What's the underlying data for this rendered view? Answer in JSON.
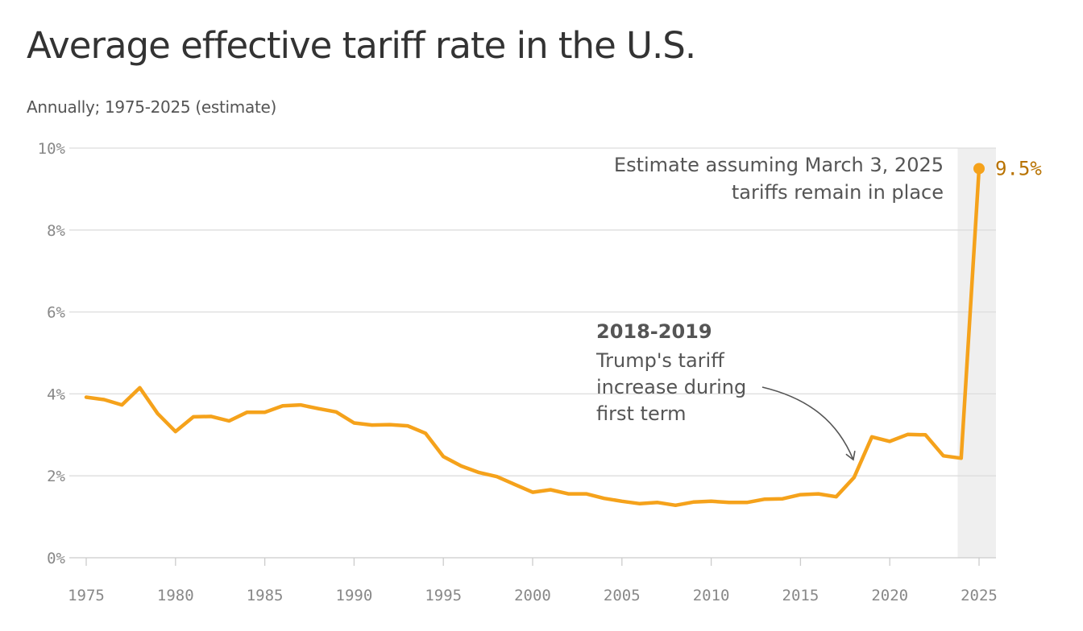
{
  "header": {
    "title": "Average effective tariff rate in the U.S.",
    "subtitle": "Annually; 1975-2025 (estimate)"
  },
  "colors": {
    "line": "#f5a21b",
    "end_label": "#b87200",
    "grid": "#dddddd",
    "shade": "#efefef",
    "arrow": "#555555"
  },
  "chart_data": {
    "type": "line",
    "title": "Average effective tariff rate in the U.S.",
    "subtitle": "Annually; 1975-2025 (estimate)",
    "xlabel": "",
    "ylabel": "",
    "xlim": [
      1975,
      2025
    ],
    "ylim": [
      0,
      10
    ],
    "grid": true,
    "y_ticks": [
      0,
      2,
      4,
      6,
      8,
      10
    ],
    "y_tick_labels": [
      "0%",
      "2%",
      "4%",
      "6%",
      "8%",
      "10%"
    ],
    "x_ticks": [
      1975,
      1980,
      1985,
      1990,
      1995,
      2000,
      2005,
      2010,
      2015,
      2020,
      2025
    ],
    "x_tick_labels": [
      "1975",
      "1980",
      "1985",
      "1990",
      "1995",
      "2000",
      "2005",
      "2010",
      "2015",
      "2020",
      "2025"
    ],
    "shaded_range": [
      2024,
      2025
    ],
    "x": [
      1975,
      1976,
      1977,
      1978,
      1979,
      1980,
      1981,
      1982,
      1983,
      1984,
      1985,
      1986,
      1987,
      1988,
      1989,
      1990,
      1991,
      1992,
      1993,
      1994,
      1995,
      1996,
      1997,
      1998,
      1999,
      2000,
      2001,
      2002,
      2003,
      2004,
      2005,
      2006,
      2007,
      2008,
      2009,
      2010,
      2011,
      2012,
      2013,
      2014,
      2015,
      2016,
      2017,
      2018,
      2019,
      2020,
      2021,
      2022,
      2023,
      2024,
      2025
    ],
    "series": [
      {
        "values": [
          3.92,
          3.86,
          3.73,
          4.15,
          3.52,
          3.08,
          3.44,
          3.45,
          3.34,
          3.55,
          3.55,
          3.71,
          3.73,
          3.64,
          3.56,
          3.29,
          3.24,
          3.25,
          3.22,
          3.04,
          2.47,
          2.24,
          2.08,
          1.98,
          1.79,
          1.6,
          1.66,
          1.56,
          1.56,
          1.45,
          1.38,
          1.32,
          1.35,
          1.28,
          1.36,
          1.38,
          1.35,
          1.35,
          1.43,
          1.44,
          1.54,
          1.56,
          1.49,
          1.96,
          2.95,
          2.84,
          3.01,
          3.0,
          2.49,
          2.43,
          9.5
        ]
      }
    ],
    "end_label": "9.5%",
    "annotations": [
      {
        "heading": "2018-2019",
        "lines": [
          "Trump's tariff",
          "increase during",
          "first term"
        ],
        "x": 2018
      },
      {
        "lines": [
          "Estimate assuming March 3, 2025",
          "tariffs remain in place"
        ],
        "x": 2025
      }
    ]
  }
}
